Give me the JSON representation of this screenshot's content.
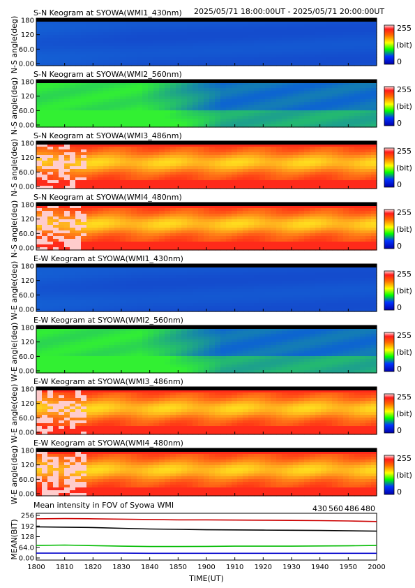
{
  "chart_data": {
    "type": "heatmap",
    "header_range": "2025/05/71 18:00:00UT - 2025/05/71 20:00:00UT",
    "colorbar": {
      "max_label": "255",
      "unit_label": "(bit)",
      "min_label": "0"
    },
    "time_ticks": [
      "1800",
      "1810",
      "1820",
      "1830",
      "1840",
      "1850",
      "1900",
      "1910",
      "1920",
      "1930",
      "1940",
      "1950",
      "2000"
    ],
    "angle_ticks": [
      "180",
      "120",
      "60.0",
      "0.00"
    ],
    "keograms": [
      {
        "title": "S-N Keogram at SYOWA(WMI1_430nm)",
        "ylabel": "N-S angle(deg)",
        "ylim": [
          0,
          180
        ],
        "style": "blue",
        "mean_level": 40
      },
      {
        "title": "S-N Keogram at SYOWA(WMI2_560nm)",
        "ylabel": "N-S angle(deg)",
        "ylim": [
          0,
          180
        ],
        "style": "green",
        "mean_level": 75
      },
      {
        "title": "S-N Keogram at SYOWA(WMI3_486nm)",
        "ylabel": "N-S angle(deg)",
        "ylim": [
          0,
          180
        ],
        "style": "red",
        "mean_level": 220
      },
      {
        "title": "S-N Keogram at SYOWA(WMI4_480nm)",
        "ylabel": "N-S angle(deg)",
        "ylim": [
          0,
          180
        ],
        "style": "red",
        "mean_level": 190
      },
      {
        "title": "E-W Keogram at SYOWA(WMI1_430nm)",
        "ylabel": "W-E angle(deg)",
        "ylim": [
          0,
          180
        ],
        "style": "blue",
        "mean_level": 40
      },
      {
        "title": "E-W Keogram at SYOWA(WMI2_560nm)",
        "ylabel": "W-E angle(deg)",
        "ylim": [
          0,
          180
        ],
        "style": "green",
        "mean_level": 75
      },
      {
        "title": "E-W Keogram at SYOWA(WMI3_486nm)",
        "ylabel": "W-E angle(deg)",
        "ylim": [
          0,
          180
        ],
        "style": "red",
        "mean_level": 220
      },
      {
        "title": "E-W Keogram at SYOWA(WMI4_480nm)",
        "ylabel": "W-E angle(deg)",
        "ylim": [
          0,
          180
        ],
        "style": "red",
        "mean_level": 190
      }
    ],
    "mean_plot": {
      "type": "line",
      "title": "Mean intensity in FOV of Syowa WMI",
      "ylabel": "MEAN(BIT)",
      "xlabel": "TIME(UT)",
      "ylim": [
        0,
        256
      ],
      "y_ticks": [
        "256",
        "192",
        "128",
        "64.0",
        "0.00"
      ],
      "x": [
        1800,
        1810,
        1820,
        1830,
        1840,
        1850,
        1900,
        1910,
        1920,
        1930,
        1940,
        1950,
        2000
      ],
      "series": [
        {
          "name": "430",
          "color": "#0000cc",
          "values": [
            38,
            38,
            38,
            38,
            37,
            37,
            37,
            37,
            37,
            37,
            37,
            37,
            37
          ]
        },
        {
          "name": "560",
          "color": "#00bb00",
          "values": [
            80,
            82,
            79,
            76,
            74,
            74,
            75,
            76,
            76,
            76,
            77,
            78,
            80
          ]
        },
        {
          "name": "486",
          "color": "#cc0000",
          "values": [
            226,
            227,
            226,
            224,
            222,
            220,
            220,
            219,
            218,
            217,
            216,
            214,
            211
          ]
        },
        {
          "name": "480",
          "color": "#000000",
          "values": [
            182,
            180,
            178,
            174,
            170,
            168,
            166,
            165,
            164,
            163,
            162,
            160,
            158
          ]
        }
      ]
    }
  }
}
